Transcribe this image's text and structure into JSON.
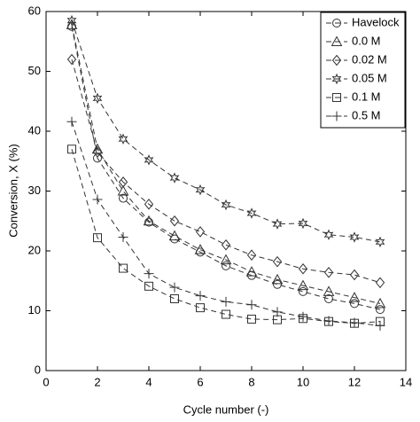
{
  "chart_data": {
    "type": "line",
    "x_label": "Cycle number (-)",
    "y_label": "Conversion, X (%)",
    "x": [
      1,
      2,
      3,
      4,
      5,
      6,
      7,
      8,
      9,
      10,
      11,
      12,
      13
    ],
    "xlim": [
      0,
      14
    ],
    "xticks": [
      0,
      2,
      4,
      6,
      8,
      10,
      12,
      14
    ],
    "ylim": [
      0,
      60
    ],
    "yticks": [
      0,
      10,
      20,
      30,
      40,
      50,
      60
    ],
    "legend": "top-right",
    "line_style": "dashed",
    "series": [
      {
        "name": "Havelock",
        "color": "#333333",
        "marker": "circle",
        "values": [
          57.5,
          35.5,
          28.8,
          24.8,
          22,
          19.8,
          17.5,
          15.9,
          14.4,
          13.2,
          12,
          11.2,
          10.2
        ]
      },
      {
        "name": "0.0 M",
        "color": "#333333",
        "marker": "triangle",
        "values": [
          57.8,
          37,
          30,
          25,
          22.5,
          20.2,
          18.5,
          16.5,
          15.2,
          14.2,
          13.2,
          12.2,
          11.2
        ]
      },
      {
        "name": "0.02 M",
        "color": "#333333",
        "marker": "diamond",
        "values": [
          52,
          36.5,
          31.5,
          27.8,
          25,
          23.2,
          21,
          19.3,
          18.2,
          17,
          16.4,
          16,
          14.7
        ]
      },
      {
        "name": "0.05 M",
        "color": "#333333",
        "marker": "star",
        "values": [
          58.5,
          45.5,
          38.7,
          35.2,
          32.2,
          30.2,
          27.7,
          26.3,
          24.5,
          24.6,
          22.7,
          22.3,
          21.5
        ]
      },
      {
        "name": "0.1 M",
        "color": "#333333",
        "marker": "square",
        "values": [
          37,
          22.2,
          17.1,
          14.1,
          12,
          10.5,
          9.4,
          8.6,
          8.5,
          8.7,
          8.2,
          7.9,
          8.2
        ]
      },
      {
        "name": "0.5 M",
        "color": "#333333",
        "marker": "plus",
        "values": [
          41.6,
          28.6,
          22.3,
          16.2,
          13.9,
          12.5,
          11.5,
          11,
          9.8,
          9,
          8.3,
          8,
          7.5
        ]
      }
    ]
  }
}
